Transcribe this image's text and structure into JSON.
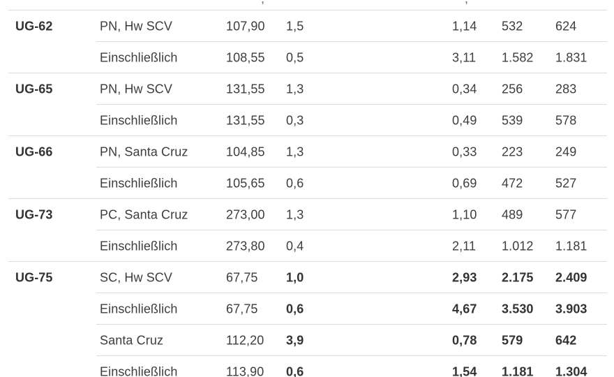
{
  "header": {
    "cells": [
      "",
      "",
      "",
      ",",
      "",
      ",",
      "",
      ""
    ]
  },
  "rows": [
    {
      "id": "UG-62",
      "desc": "PN, Hw SCV",
      "v1": "107,90",
      "v2": "1,5",
      "v3": "1,14",
      "v4": "532",
      "v5": "624",
      "bold": false
    },
    {
      "id": "",
      "desc": "Einschließlich",
      "v1": "108,55",
      "v2": "0,5",
      "v3": "3,11",
      "v4": "1.582",
      "v5": "1.831",
      "bold": false
    },
    {
      "id": "UG-65",
      "desc": "PN, Hw SCV",
      "v1": "131,55",
      "v2": "1,3",
      "v3": "0,34",
      "v4": "256",
      "v5": "283",
      "bold": false
    },
    {
      "id": "",
      "desc": "Einschließlich",
      "v1": "131,55",
      "v2": "0,3",
      "v3": "0,49",
      "v4": "539",
      "v5": "578",
      "bold": false
    },
    {
      "id": "UG-66",
      "desc": "PN, Santa Cruz",
      "v1": "104,85",
      "v2": "1,3",
      "v3": "0,33",
      "v4": "223",
      "v5": "249",
      "bold": false
    },
    {
      "id": "",
      "desc": "Einschließlich",
      "v1": "105,65",
      "v2": "0,6",
      "v3": "0,69",
      "v4": "472",
      "v5": "527",
      "bold": false
    },
    {
      "id": "UG-73",
      "desc": "PC, Santa Cruz",
      "v1": "273,00",
      "v2": "1,3",
      "v3": "1,10",
      "v4": "489",
      "v5": "577",
      "bold": false
    },
    {
      "id": "",
      "desc": "Einschließlich",
      "v1": "273,80",
      "v2": "0,4",
      "v3": "2,11",
      "v4": "1.012",
      "v5": "1.181",
      "bold": false
    },
    {
      "id": "UG-75",
      "desc": "SC, Hw SCV",
      "v1": "67,75",
      "v2": "1,0",
      "v3": "2,93",
      "v4": "2.175",
      "v5": "2.409",
      "bold": true
    },
    {
      "id": "",
      "desc": "Einschließlich",
      "v1": "67,75",
      "v2": "0,6",
      "v3": "4,67",
      "v4": "3.530",
      "v5": "3.903",
      "bold": true
    },
    {
      "id": "",
      "desc": "Santa Cruz",
      "v1": "112,20",
      "v2": "3,9",
      "v3": "0,78",
      "v4": "579",
      "v5": "642",
      "bold": true
    },
    {
      "id": "",
      "desc": "Einschließlich",
      "v1": "113,90",
      "v2": "0,6",
      "v3": "1,54",
      "v4": "1.181",
      "v5": "1.304",
      "bold": true
    }
  ]
}
